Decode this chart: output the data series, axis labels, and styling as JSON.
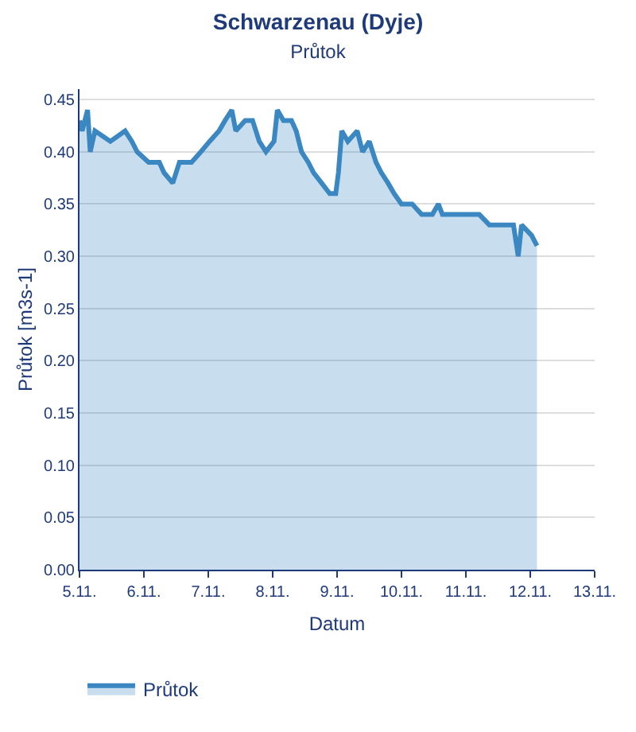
{
  "chart_data": {
    "type": "area",
    "title": "Schwarzenau (Dyje)",
    "subtitle": "Průtok",
    "xlabel": "Datum",
    "ylabel": "Průtok [m3s-1]",
    "x": [
      "--11-05T00:00",
      "--11-05T01:00",
      "--11-05T03:00",
      "--11-05T04:00",
      "--11-05T05:45",
      "--11-05T11:30",
      "--11-05T17:00",
      "--11-05T19:30",
      "--11-05T21:30",
      "--11-06T01:45",
      "--11-06T05:45",
      "--11-06T07:30",
      "--11-06T10:45",
      "--11-06T13:15",
      "--11-06T17:45",
      "--11-06T21:15",
      "--11-07T00:30",
      "--11-07T04:00",
      "--11-07T06:15",
      "--11-07T08:45",
      "--11-07T10:15",
      "--11-07T13:45",
      "--11-07T16:30",
      "--11-07T19:00",
      "--11-07T21:30",
      "--11-08T00:30",
      "--11-08T01:45",
      "--11-08T04:00",
      "--11-08T07:00",
      "--11-08T08:45",
      "--11-08T10:45",
      "--11-08T13:15",
      "--11-08T15:15",
      "--11-08T18:15",
      "--11-08T21:15",
      "--11-08T23:30",
      "--11-09T00:30",
      "--11-09T01:45",
      "--11-09T04:00",
      "--11-09T07:30",
      "--11-09T09:30",
      "--11-09T12:00",
      "--11-09T14:30",
      "--11-09T16:30",
      "--11-09T19:00",
      "--11-09T21:15",
      "--11-10T00:00",
      "--11-10T04:00",
      "--11-10T07:30",
      "--11-10T11:30",
      "--11-10T13:45",
      "--11-10T15:15",
      "--11-11T01:45",
      "--11-11T05:00",
      "--11-11T08:45",
      "--11-11T13:15",
      "--11-11T17:45",
      "--11-11T19:30",
      "--11-11T20:45",
      "--11-12T00:30",
      "--11-12T02:30"
    ],
    "series": [
      {
        "name": "Průtok",
        "color": "#3a87c2",
        "values": [
          0.43,
          0.42,
          0.44,
          0.4,
          0.42,
          0.41,
          0.42,
          0.41,
          0.4,
          0.39,
          0.39,
          0.38,
          0.37,
          0.39,
          0.39,
          0.4,
          0.41,
          0.42,
          0.43,
          0.44,
          0.42,
          0.43,
          0.43,
          0.41,
          0.4,
          0.41,
          0.44,
          0.43,
          0.43,
          0.42,
          0.4,
          0.39,
          0.38,
          0.37,
          0.36,
          0.36,
          0.38,
          0.42,
          0.41,
          0.42,
          0.4,
          0.41,
          0.39,
          0.38,
          0.37,
          0.36,
          0.35,
          0.35,
          0.34,
          0.34,
          0.35,
          0.34,
          0.34,
          0.34,
          0.33,
          0.33,
          0.33,
          0.3,
          0.33,
          0.32,
          0.31
        ]
      }
    ],
    "xlim": [
      "--11-05",
      "--11-13"
    ],
    "xticks": [
      {
        "value": "--11-05",
        "label": "5.11."
      },
      {
        "value": "--11-06",
        "label": "6.11."
      },
      {
        "value": "--11-07",
        "label": "7.11."
      },
      {
        "value": "--11-08",
        "label": "8.11."
      },
      {
        "value": "--11-09",
        "label": "9.11."
      },
      {
        "value": "--11-10",
        "label": "10.11."
      },
      {
        "value": "--11-11",
        "label": "11.11."
      },
      {
        "value": "--11-12",
        "label": "12.11."
      },
      {
        "value": "--11-13",
        "label": "13.11."
      }
    ],
    "ylim": [
      0,
      0.46
    ],
    "yticks": [
      {
        "value": 0,
        "label": "0.00"
      },
      {
        "value": 0.05,
        "label": "0.05"
      },
      {
        "value": 0.1,
        "label": "0.10"
      },
      {
        "value": 0.15,
        "label": "0.15"
      },
      {
        "value": 0.2,
        "label": "0.20"
      },
      {
        "value": 0.25,
        "label": "0.25"
      },
      {
        "value": 0.3,
        "label": "0.30"
      },
      {
        "value": 0.35,
        "label": "0.35"
      },
      {
        "value": 0.4,
        "label": "0.40"
      },
      {
        "value": 0.45,
        "label": "0.45"
      }
    ],
    "grid": "y",
    "legend": "bottom left",
    "line_style": "solid",
    "marker": "none"
  }
}
